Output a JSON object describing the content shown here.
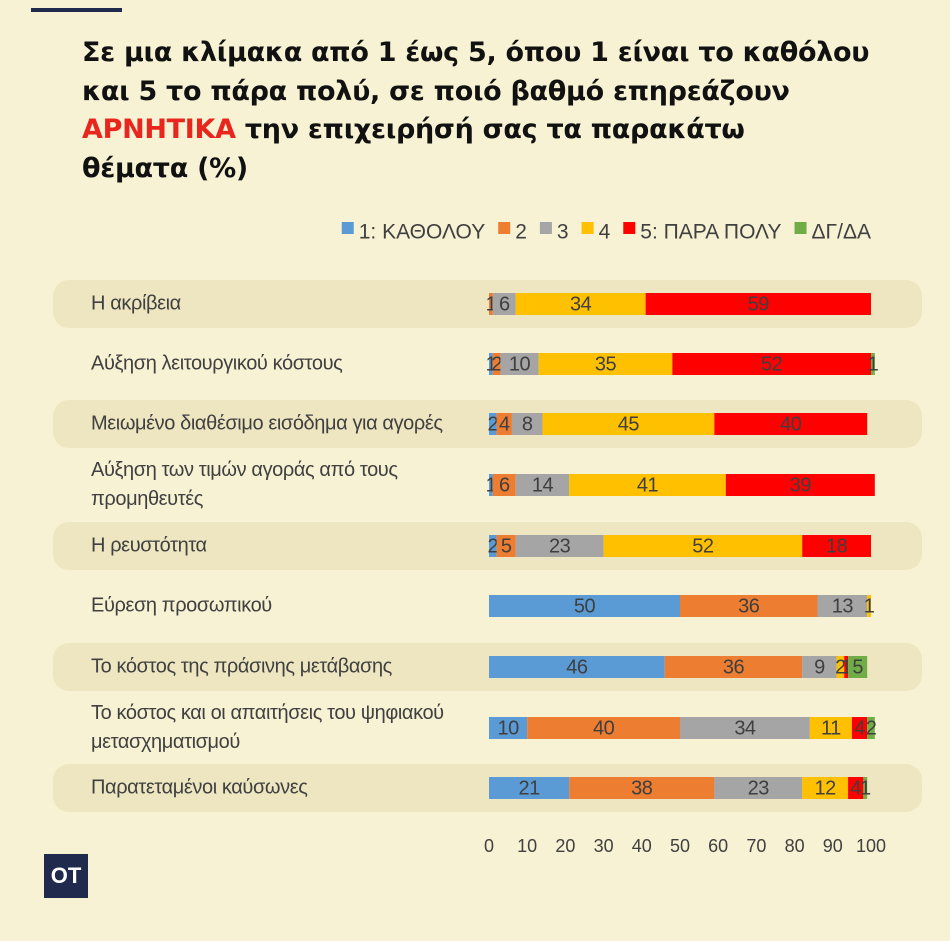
{
  "title": {
    "line1": "Σε μια κλίμακα από 1 έως 5, όπου 1 είναι το καθόλου",
    "line2": "και 5 το πάρα πολύ, σε ποιό βαθμό επηρεάζουν",
    "highlight": "ΑΡΝΗΤΙΚΑ",
    "line3_rest": " την επιχειρήσή σας τα παρακάτω",
    "line4": "θέματα (%)"
  },
  "logo": "OT",
  "colors": {
    "background": "#f7f2d3",
    "row_band": "#ede6c1",
    "highlight": "#e8261d"
  },
  "chart_data": {
    "type": "bar",
    "orientation": "horizontal",
    "stacked": true,
    "xlim": [
      0,
      100
    ],
    "xticks": [
      0,
      10,
      20,
      30,
      40,
      50,
      60,
      70,
      80,
      90,
      100
    ],
    "legend_position": "top-right",
    "categories": [
      "Η ακρίβεια",
      "Αύξηση λειτουργικού κόστους",
      "Μειωμένο διαθέσιμο εισόδημα για αγορές",
      "Αύξηση των τιμών αγοράς από τους προμηθευτές",
      "Η ρευστότητα",
      "Εύρεση προσωπικού",
      "Το κόστος της πράσινης μετάβασης",
      "Το κόστος και οι απαιτήσεις  του ψηφιακού μετασχηματισμού",
      "Παρατεταμένοι καύσωνες"
    ],
    "series": [
      {
        "name": "1: ΚΑΘΟΛΟΥ",
        "color": "#5b9bd5",
        "values": [
          0,
          1,
          2,
          1,
          2,
          50,
          46,
          10,
          21
        ]
      },
      {
        "name": "2",
        "color": "#ed7d31",
        "values": [
          1,
          2,
          4,
          6,
          5,
          36,
          36,
          40,
          38
        ]
      },
      {
        "name": "3",
        "color": "#a5a5a5",
        "values": [
          6,
          10,
          8,
          14,
          23,
          13,
          9,
          34,
          23
        ]
      },
      {
        "name": "4",
        "color": "#ffc000",
        "values": [
          34,
          35,
          45,
          41,
          52,
          1,
          2,
          11,
          12
        ]
      },
      {
        "name": "5: ΠΑΡΑ ΠΟΛΥ",
        "color": "#ff0000",
        "values": [
          59,
          52,
          40,
          39,
          18,
          0,
          1,
          4,
          4
        ]
      },
      {
        "name": "ΔΓ/ΔΑ",
        "color": "#70ad47",
        "values": [
          0,
          1,
          0,
          0,
          0,
          0,
          5,
          2,
          1
        ]
      }
    ]
  }
}
